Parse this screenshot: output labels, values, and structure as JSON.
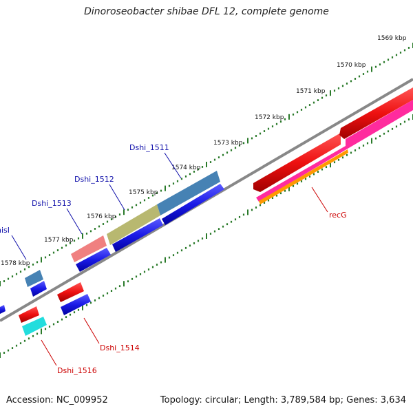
{
  "title": "Dinoroseobacter shibae DFL 12, complete genome",
  "footer": {
    "accession": "Accession: NC_009952",
    "stats": "Topology: circular; Length: 3,789,584 bp; Genes: 3,634"
  },
  "scale_labels": [
    "1569 kbp",
    "1570 kbp",
    "1571 kbp",
    "1572 kbp",
    "1573 kbp",
    "1574 kbp",
    "1575 kbp",
    "1576 kbp",
    "1577 kbp",
    "1578 kbp"
  ],
  "gene_labels": {
    "dshi_1511": "Dshi_1511",
    "dshi_1512": "Dshi_1512",
    "dshi_1513": "Dshi_1513",
    "hisi": "hisI",
    "dshi_1514": "Dshi_1514",
    "dshi_1516": "Dshi_1516",
    "recg": "recG"
  },
  "colors": {
    "backbone": "#888888",
    "tick_green": "#2a7a2a",
    "cds_blue": "#1a1ae6",
    "cds_red": "#ee1111",
    "steelblue": "#4682b4",
    "khaki": "#b8b870",
    "salmon": "#f08080",
    "magenta": "#ff1493",
    "orange": "#ff9900",
    "cyan": "#22dddd"
  }
}
